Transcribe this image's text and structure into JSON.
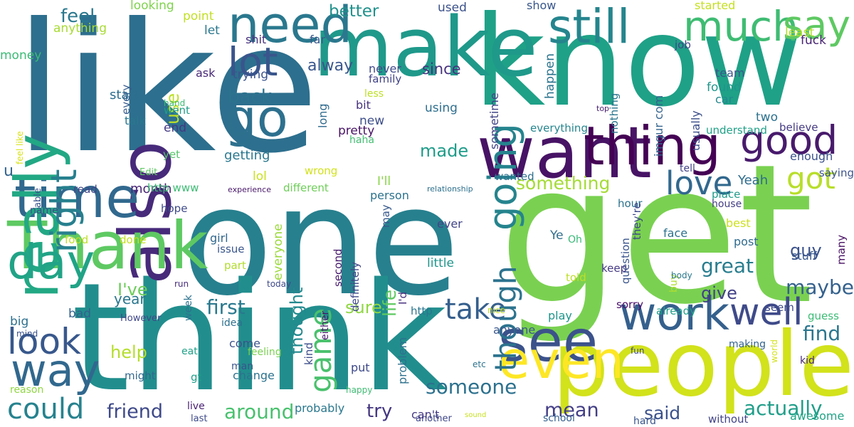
{
  "words": [
    {
      "text": "like",
      "color": "#2d6f8e"
    },
    {
      "text": "one",
      "color": "#27808e"
    },
    {
      "text": "get",
      "color": "#7ad151"
    },
    {
      "text": "know",
      "color": "#1fa187"
    },
    {
      "text": "think",
      "color": "#218e8d"
    },
    {
      "text": "people",
      "color": "#d2e21b"
    },
    {
      "text": "make",
      "color": "#1f998a"
    },
    {
      "text": "want",
      "color": "#471365"
    },
    {
      "text": "thing",
      "color": "#440154"
    },
    {
      "text": "also",
      "color": "#472a7a"
    },
    {
      "text": "Thank",
      "color": "#5ec962"
    },
    {
      "text": "time",
      "color": "#31688e"
    },
    {
      "text": "really",
      "color": "#22a884"
    },
    {
      "text": "need",
      "color": "#2a788e"
    },
    {
      "text": "still",
      "color": "#25858e"
    },
    {
      "text": "much",
      "color": "#3fbc73"
    },
    {
      "text": "say",
      "color": "#5ec962"
    },
    {
      "text": "go",
      "color": "#2d708e"
    },
    {
      "text": "good",
      "color": "#481a6c"
    },
    {
      "text": "work",
      "color": "#35608d"
    },
    {
      "text": "see",
      "color": "#3b528b"
    },
    {
      "text": "even",
      "color": "#fde725"
    },
    {
      "text": "day",
      "color": "#20a386"
    },
    {
      "text": "way",
      "color": "#31688e"
    },
    {
      "text": "could",
      "color": "#26828e"
    },
    {
      "text": "right",
      "color": "#27808e"
    },
    {
      "text": "going",
      "color": "#25848e"
    },
    {
      "text": "lot",
      "color": "#39558c"
    },
    {
      "text": "game",
      "color": "#4ac16d"
    },
    {
      "text": "take",
      "color": "#355f8d"
    },
    {
      "text": "well",
      "color": "#3e4a89"
    },
    {
      "text": "look",
      "color": "#38588c"
    },
    {
      "text": "love",
      "color": "#31688e"
    },
    {
      "text": "got",
      "color": "#b8de29"
    },
    {
      "text": "though",
      "color": "#2c738e"
    },
    {
      "text": "find",
      "color": "#2a768e"
    },
    {
      "text": "maybe",
      "color": "#34618d"
    },
    {
      "text": "great",
      "color": "#287d8e"
    },
    {
      "text": "actually",
      "color": "#1f9e89"
    },
    {
      "text": "around",
      "color": "#48c16e"
    },
    {
      "text": "friend",
      "color": "#3e4989"
    },
    {
      "text": "mean",
      "color": "#433e85"
    },
    {
      "text": "said",
      "color": "#3b528b"
    },
    {
      "text": "try",
      "color": "#453781"
    },
    {
      "text": "someone",
      "color": "#2c718e"
    },
    {
      "text": "first",
      "color": "#29798e"
    },
    {
      "text": "feel",
      "color": "#2a788e"
    },
    {
      "text": "back",
      "color": "#2c738e"
    },
    {
      "text": "something",
      "color": "#a5db36"
    },
    {
      "text": "made",
      "color": "#1e9c89"
    },
    {
      "text": "since",
      "color": "#46327e"
    },
    {
      "text": "alway",
      "color": "#39568c"
    },
    {
      "text": "better",
      "color": "#21918c"
    },
    {
      "text": "use",
      "color": "#bddf26"
    },
    {
      "text": "life",
      "color": "#5ec962"
    },
    {
      "text": "sure",
      "color": "#90d743"
    },
    {
      "text": "I've",
      "color": "#6ccd5a"
    },
    {
      "text": "year",
      "color": "#2a768e"
    },
    {
      "text": "help",
      "color": "#b5de2b"
    },
    {
      "text": "give",
      "color": "#424186"
    },
    {
      "text": "guy",
      "color": "#3b528b"
    },
    {
      "text": "thought",
      "color": "#23898e"
    },
    {
      "text": "u",
      "color": "#33638d"
    },
    {
      "text": "lol",
      "color": "#cae11f"
    },
    {
      "text": "I'll",
      "color": "#89d548"
    },
    {
      "text": "Yeah",
      "color": "#2f6c8e"
    },
    {
      "text": "month",
      "color": "#482576"
    },
    {
      "text": "getting",
      "color": "#2a778e"
    },
    {
      "text": "trying",
      "color": "#3a548c"
    },
    {
      "text": "start",
      "color": "#2e6e8e"
    },
    {
      "text": "end",
      "color": "#443983"
    },
    {
      "text": "new",
      "color": "#3d4e8a"
    },
    {
      "text": "bit",
      "color": "#46337f"
    },
    {
      "text": "pretty",
      "color": "#471365"
    },
    {
      "text": "looking",
      "color": "#7fd34e"
    },
    {
      "text": "anything",
      "color": "#a8db34"
    },
    {
      "text": "point",
      "color": "#c2df23"
    },
    {
      "text": "let",
      "color": "#2a778e"
    },
    {
      "text": "used",
      "color": "#3b518b"
    },
    {
      "text": "show",
      "color": "#38578c"
    },
    {
      "text": "started",
      "color": "#c5e021"
    },
    {
      "text": "least",
      "color": "#b2dd2d"
    },
    {
      "text": "fuck",
      "color": "#482475"
    },
    {
      "text": "shit",
      "color": "#46307e"
    },
    {
      "text": "far",
      "color": "#37598c"
    },
    {
      "text": "job",
      "color": "#404688"
    },
    {
      "text": "money",
      "color": "#3bbb75"
    },
    {
      "text": "every",
      "color": "#365c8d"
    },
    {
      "text": "ask",
      "color": "#482878"
    },
    {
      "text": "never",
      "color": "#3e4989"
    },
    {
      "text": "family",
      "color": "#414487"
    },
    {
      "text": "happen",
      "color": "#2b748e"
    },
    {
      "text": "team",
      "color": "#39568c"
    },
    {
      "text": "found",
      "color": "#1f968b"
    },
    {
      "text": "car",
      "color": "#23888e"
    },
    {
      "text": "less",
      "color": "#bddf26"
    },
    {
      "text": "long",
      "color": "#2f6b8e"
    },
    {
      "text": "using",
      "color": "#2e6f8e"
    },
    {
      "text": "sometime",
      "color": "#414487"
    },
    {
      "text": "nothing",
      "color": "#2b758e"
    },
    {
      "text": "imgur com",
      "color": "#33638d"
    },
    {
      "text": "usually",
      "color": "#3c4f8a"
    },
    {
      "text": "two",
      "color": "#2c718e"
    },
    {
      "text": "hand",
      "color": "#3bbb75"
    },
    {
      "text": "talk",
      "color": "#2a778e"
    },
    {
      "text": "went",
      "color": "#1f9f88"
    },
    {
      "text": "feel like",
      "color": "#d8e219"
    },
    {
      "text": "top",
      "color": "#481f70"
    },
    {
      "text": "everything",
      "color": "#25858e"
    },
    {
      "text": "understand",
      "color": "#1fa187"
    },
    {
      "text": "believe",
      "color": "#443a83"
    },
    {
      "text": "enough",
      "color": "#3b528b"
    },
    {
      "text": "yet",
      "color": "#54c568"
    },
    {
      "text": "Edit",
      "color": "#5ec962"
    },
    {
      "text": "haha",
      "color": "#42be71"
    },
    {
      "text": "able",
      "color": "#3b528b"
    },
    {
      "text": "wrong",
      "color": "#d2e21b"
    },
    {
      "text": "read",
      "color": "#404688"
    },
    {
      "text": "http www",
      "color": "#3dbc74"
    },
    {
      "text": "experience",
      "color": "#481769"
    },
    {
      "text": "different",
      "color": "#6ece58"
    },
    {
      "text": "wanted",
      "color": "#2d708e"
    },
    {
      "text": "relationship",
      "color": "#2d708e"
    },
    {
      "text": "tell",
      "color": "#424086"
    },
    {
      "text": "place",
      "color": "#1f9a8a"
    },
    {
      "text": "saying",
      "color": "#3b528b"
    },
    {
      "text": "name",
      "color": "#3d4d8a"
    },
    {
      "text": "hope",
      "color": "#3e4a89"
    },
    {
      "text": "person",
      "color": "#2c728e"
    },
    {
      "text": "may",
      "color": "#37598c"
    },
    {
      "text": "hour",
      "color": "#2c728e"
    },
    {
      "text": "house",
      "color": "#433e85"
    },
    {
      "text": "food",
      "color": "#bddf26"
    },
    {
      "text": "done",
      "color": "#c5e021"
    },
    {
      "text": "girl",
      "color": "#31688e"
    },
    {
      "text": "issue",
      "color": "#39568c"
    },
    {
      "text": "everyone",
      "color": "#9bd93c"
    },
    {
      "text": "second",
      "color": "#481a6c"
    },
    {
      "text": "ever",
      "color": "#414487"
    },
    {
      "text": "Ye",
      "color": "#2e6e8e"
    },
    {
      "text": "Oh",
      "color": "#38b977"
    },
    {
      "text": "question",
      "color": "#39558c"
    },
    {
      "text": "they're",
      "color": "#3e4989"
    },
    {
      "text": "face",
      "color": "#2c728e"
    },
    {
      "text": "best",
      "color": "#cde11d"
    },
    {
      "text": "post",
      "color": "#2f6b8e"
    },
    {
      "text": "stuff",
      "color": "#38588c"
    },
    {
      "text": "many",
      "color": "#471063"
    },
    {
      "text": "part",
      "color": "#b2dd2d"
    },
    {
      "text": "definitely",
      "color": "#404688"
    },
    {
      "text": "little",
      "color": "#1f958b"
    },
    {
      "text": "keep",
      "color": "#443983"
    },
    {
      "text": "buy",
      "color": "#b0dd2f"
    },
    {
      "text": "told",
      "color": "#bddf26"
    },
    {
      "text": "today",
      "color": "#3e4a89"
    },
    {
      "text": "run",
      "color": "#472d7b"
    },
    {
      "text": "week",
      "color": "#2c738e"
    },
    {
      "text": "I'd",
      "color": "#46307e"
    },
    {
      "text": "body",
      "color": "#2a788e"
    },
    {
      "text": "sorry",
      "color": "#4a0c6b"
    },
    {
      "text": "already",
      "color": "#1f9e89"
    },
    {
      "text": "seem",
      "color": "#3e4989"
    },
    {
      "text": "guess",
      "color": "#3bbb75"
    },
    {
      "text": "big",
      "color": "#2d708e"
    },
    {
      "text": "bad",
      "color": "#34618d"
    },
    {
      "text": "However",
      "color": "#3f4788"
    },
    {
      "text": "idea",
      "color": "#2d708e"
    },
    {
      "text": "either",
      "color": "#481a6c"
    },
    {
      "text": "http",
      "color": "#2a768e"
    },
    {
      "text": "nice",
      "color": "#c0df25"
    },
    {
      "text": "anyone",
      "color": "#39568c"
    },
    {
      "text": "play",
      "color": "#1f958b"
    },
    {
      "text": "mind",
      "color": "#3b528b"
    },
    {
      "text": "eat",
      "color": "#1fa187"
    },
    {
      "text": "feeling",
      "color": "#7ad151"
    },
    {
      "text": "come",
      "color": "#3b528b"
    },
    {
      "text": "kind",
      "color": "#3d4e8a"
    },
    {
      "text": "fun",
      "color": "#3e4a89"
    },
    {
      "text": "making",
      "color": "#33638d"
    },
    {
      "text": "world",
      "color": "#d2e21b"
    },
    {
      "text": "kid",
      "color": "#482878"
    },
    {
      "text": "might",
      "color": "#31688e"
    },
    {
      "text": "gt",
      "color": "#1f9e89"
    },
    {
      "text": "man",
      "color": "#39558c"
    },
    {
      "text": "change",
      "color": "#2c728e"
    },
    {
      "text": "put",
      "color": "#3e4989"
    },
    {
      "text": "problem",
      "color": "#2d708e"
    },
    {
      "text": "etc",
      "color": "#2c738e"
    },
    {
      "text": "reason",
      "color": "#90d743"
    },
    {
      "text": "happy",
      "color": "#3fbc73"
    },
    {
      "text": "live",
      "color": "#481f70"
    },
    {
      "text": "last",
      "color": "#3e4a89"
    },
    {
      "text": "probably",
      "color": "#2a788e"
    },
    {
      "text": "another",
      "color": "#3f4788"
    },
    {
      "text": "can't",
      "color": "#443983"
    },
    {
      "text": "sound",
      "color": "#c8e020"
    },
    {
      "text": "school",
      "color": "#355f8d"
    },
    {
      "text": "hard",
      "color": "#39558c"
    },
    {
      "text": "without",
      "color": "#414487"
    },
    {
      "text": "awesome",
      "color": "#20a486"
    }
  ]
}
